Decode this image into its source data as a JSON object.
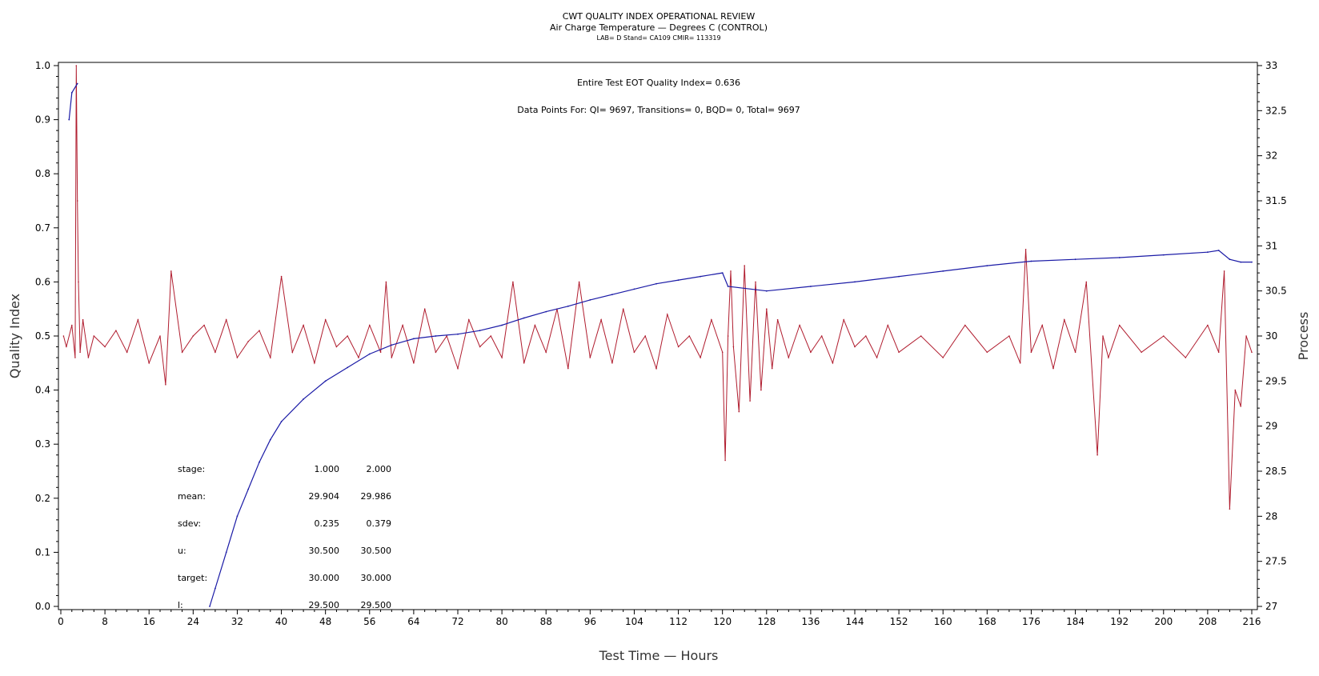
{
  "header": {
    "title": "CWT QUALITY INDEX OPERATIONAL REVIEW",
    "subtitle": "Air Charge Temperature — Degrees C (CONTROL)",
    "caption": "LAB= D Stand= CA109 CMIR= 113319"
  },
  "annotations": {
    "eot_qi": "Entire Test EOT Quality Index=   0.636",
    "data_points": "Data Points For: QI=  9697, Transitions=     0, BQD=     0, Total=  9697"
  },
  "stats": {
    "rows": [
      {
        "label": "stage:",
        "v1": "1.000",
        "v2": "2.000"
      },
      {
        "label": "mean:",
        "v1": "29.904",
        "v2": "29.986"
      },
      {
        "label": "sdev:",
        "v1": "0.235",
        "v2": "0.379"
      },
      {
        "label": "u:",
        "v1": "30.500",
        "v2": "30.500"
      },
      {
        "label": "target:",
        "v1": "30.000",
        "v2": "30.000"
      },
      {
        "label": "l:",
        "v1": "29.500",
        "v2": "29.500"
      }
    ]
  },
  "colors": {
    "quality_index": "#b01c2e",
    "process": "#1a1aa6",
    "axis": "#000000"
  },
  "chart_data": {
    "type": "line",
    "xlabel": "Test Time — Hours",
    "ylabel": "Quality Index",
    "y2label": "Process",
    "xlim": [
      0,
      216
    ],
    "ylim": [
      0,
      1
    ],
    "y2lim": [
      27,
      33
    ],
    "x_ticks": [
      0,
      8,
      16,
      24,
      32,
      40,
      48,
      56,
      64,
      72,
      80,
      88,
      96,
      104,
      112,
      120,
      128,
      136,
      144,
      152,
      160,
      168,
      176,
      184,
      192,
      200,
      208,
      216
    ],
    "y_ticks": [
      "0.0",
      "0.1",
      "0.2",
      "0.3",
      "0.4",
      "0.5",
      "0.6",
      "0.7",
      "0.8",
      "0.9",
      "1.0"
    ],
    "y2_ticks": [
      "27",
      "27.5",
      "28",
      "28.5",
      "29",
      "29.5",
      "30",
      "30.5",
      "31",
      "31.5",
      "32",
      "32.5",
      "33"
    ],
    "grid": false,
    "series": [
      {
        "axis": "left",
        "x": [
          0.5,
          1,
          2,
          2.6,
          2.8,
          3.0,
          3.2,
          3.5,
          4,
          5,
          6,
          8,
          10,
          12,
          14,
          16,
          18,
          19,
          20,
          22,
          24,
          26,
          28,
          30,
          32,
          34,
          36,
          38,
          40,
          42,
          44,
          46,
          48,
          50,
          52,
          54,
          56,
          58,
          59,
          60,
          62,
          64,
          66,
          68,
          70,
          72,
          74,
          76,
          78,
          80,
          82,
          84,
          86,
          88,
          90,
          92,
          94,
          96,
          98,
          100,
          102,
          104,
          106,
          108,
          110,
          112,
          114,
          116,
          118,
          120,
          120.5,
          121,
          121.5,
          122,
          123,
          124,
          125,
          126,
          127,
          128,
          129,
          130,
          132,
          134,
          136,
          138,
          140,
          142,
          144,
          146,
          148,
          150,
          152,
          156,
          160,
          164,
          168,
          172,
          174,
          175,
          176,
          178,
          180,
          182,
          184,
          186,
          188,
          189,
          190,
          192,
          196,
          200,
          204,
          208,
          210,
          211,
          212,
          213,
          214,
          215,
          216
        ],
        "y": [
          0.5,
          0.48,
          0.52,
          0.46,
          1.0,
          0.75,
          0.6,
          0.47,
          0.53,
          0.46,
          0.5,
          0.48,
          0.51,
          0.47,
          0.53,
          0.45,
          0.5,
          0.41,
          0.62,
          0.47,
          0.5,
          0.52,
          0.47,
          0.53,
          0.46,
          0.49,
          0.51,
          0.46,
          0.61,
          0.47,
          0.52,
          0.45,
          0.53,
          0.48,
          0.5,
          0.46,
          0.52,
          0.47,
          0.6,
          0.46,
          0.52,
          0.45,
          0.55,
          0.47,
          0.5,
          0.44,
          0.53,
          0.48,
          0.5,
          0.46,
          0.6,
          0.45,
          0.52,
          0.47,
          0.55,
          0.44,
          0.6,
          0.46,
          0.53,
          0.45,
          0.55,
          0.47,
          0.5,
          0.44,
          0.54,
          0.48,
          0.5,
          0.46,
          0.53,
          0.47,
          0.27,
          0.5,
          0.62,
          0.48,
          0.36,
          0.63,
          0.38,
          0.6,
          0.4,
          0.55,
          0.44,
          0.53,
          0.46,
          0.52,
          0.47,
          0.5,
          0.45,
          0.53,
          0.48,
          0.5,
          0.46,
          0.52,
          0.47,
          0.5,
          0.46,
          0.52,
          0.47,
          0.5,
          0.45,
          0.66,
          0.47,
          0.52,
          0.44,
          0.53,
          0.47,
          0.6,
          0.28,
          0.5,
          0.46,
          0.52,
          0.47,
          0.5,
          0.46,
          0.52,
          0.47,
          0.62,
          0.18,
          0.4,
          0.37,
          0.5,
          0.47
        ]
      },
      {
        "axis": "right",
        "x": [
          1.5,
          2,
          3,
          5,
          10,
          20,
          27,
          28,
          30,
          32,
          34,
          36,
          38,
          40,
          44,
          48,
          52,
          56,
          60,
          64,
          68,
          72,
          76,
          80,
          84,
          88,
          92,
          96,
          100,
          104,
          108,
          112,
          116,
          120,
          121,
          128,
          136,
          144,
          152,
          160,
          168,
          176,
          184,
          192,
          200,
          208,
          210,
          212,
          214,
          216
        ],
        "y": [
          32.4,
          32.7,
          32.8,
          null,
          null,
          null,
          27.0,
          27.2,
          27.6,
          28.0,
          28.3,
          28.6,
          28.85,
          29.05,
          29.3,
          29.5,
          29.65,
          29.8,
          29.9,
          29.97,
          30.0,
          30.02,
          30.06,
          30.12,
          30.2,
          30.27,
          30.33,
          30.4,
          30.46,
          30.52,
          30.58,
          30.62,
          30.66,
          30.7,
          30.55,
          30.5,
          30.55,
          30.6,
          30.66,
          30.72,
          30.78,
          30.83,
          30.85,
          30.87,
          30.9,
          30.93,
          30.95,
          30.85,
          30.82,
          30.82
        ]
      }
    ]
  }
}
